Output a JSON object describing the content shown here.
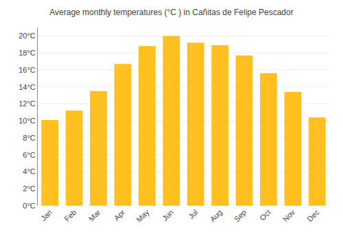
{
  "chart_data": {
    "type": "bar",
    "title": "Average monthly temperatures (°C ) in Cañitas de Felipe Pescador",
    "categories": [
      "Jan",
      "Feb",
      "Mar",
      "Apr",
      "May",
      "Jun",
      "Jul",
      "Aug",
      "Sep",
      "Oct",
      "Nov",
      "Dec"
    ],
    "values": [
      10.1,
      11.2,
      13.5,
      16.7,
      18.8,
      20.0,
      19.2,
      18.9,
      17.7,
      15.6,
      13.4,
      10.4
    ],
    "color": "#FFC020",
    "ylim": [
      0,
      21
    ],
    "yticks": [
      {
        "value": 0,
        "label": "0°C"
      },
      {
        "value": 2,
        "label": "2°C"
      },
      {
        "value": 4,
        "label": "4°C"
      },
      {
        "value": 6,
        "label": "6°C"
      },
      {
        "value": 8,
        "label": "8°C"
      },
      {
        "value": 10,
        "label": "10°C"
      },
      {
        "value": 12,
        "label": "12°C"
      },
      {
        "value": 14,
        "label": "14°C"
      },
      {
        "value": 16,
        "label": "16°C"
      },
      {
        "value": 18,
        "label": "18°C"
      },
      {
        "value": 20,
        "label": "20°C"
      }
    ],
    "grid": true
  }
}
